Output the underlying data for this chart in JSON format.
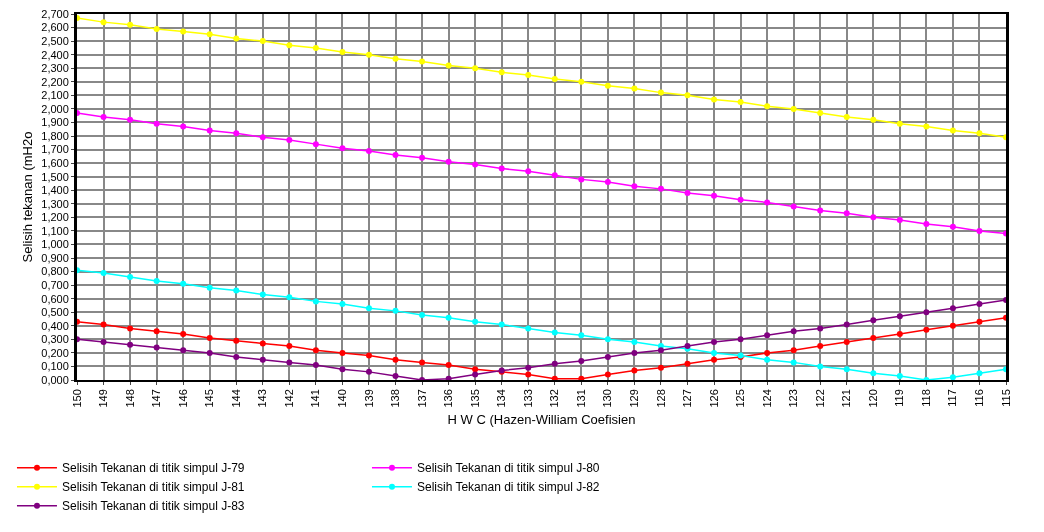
{
  "chart_data": {
    "type": "line",
    "xlabel": "H W C (Hazen-William Coefisien",
    "ylabel": "Selisih tekanan (mH2o",
    "categories": [
      "150",
      "149",
      "148",
      "147",
      "146",
      "145",
      "144",
      "143",
      "142",
      "141",
      "140",
      "139",
      "138",
      "137",
      "136",
      "135",
      "134",
      "133",
      "132",
      "131",
      "130",
      "129",
      "128",
      "127",
      "126",
      "125",
      "124",
      "123",
      "122",
      "121",
      "120",
      "119",
      "118",
      "117",
      "116",
      "115"
    ],
    "series": [
      {
        "name": "Selisih Tekanan di titik simpul J-79",
        "color": "#ff0000",
        "values": [
          0.43,
          0.41,
          0.38,
          0.36,
          0.34,
          0.31,
          0.29,
          0.27,
          0.25,
          0.22,
          0.2,
          0.18,
          0.15,
          0.13,
          0.11,
          0.08,
          0.06,
          0.04,
          0.01,
          0.01,
          0.04,
          0.07,
          0.09,
          0.12,
          0.15,
          0.17,
          0.2,
          0.22,
          0.25,
          0.28,
          0.31,
          0.34,
          0.37,
          0.4,
          0.43,
          0.46
        ]
      },
      {
        "name": "Selisih Tekanan di titik simpul J-80",
        "color": "#ff00ff",
        "values": [
          1.97,
          1.94,
          1.92,
          1.89,
          1.87,
          1.84,
          1.82,
          1.79,
          1.77,
          1.74,
          1.71,
          1.69,
          1.66,
          1.64,
          1.61,
          1.59,
          1.56,
          1.54,
          1.51,
          1.48,
          1.46,
          1.43,
          1.41,
          1.38,
          1.36,
          1.33,
          1.31,
          1.28,
          1.25,
          1.23,
          1.2,
          1.18,
          1.15,
          1.13,
          1.1,
          1.08
        ]
      },
      {
        "name": "Selisih Tekanan di titik simpul J-81",
        "color": "#ffff00",
        "values": [
          2.67,
          2.64,
          2.62,
          2.59,
          2.57,
          2.55,
          2.52,
          2.5,
          2.47,
          2.45,
          2.42,
          2.4,
          2.37,
          2.35,
          2.32,
          2.3,
          2.27,
          2.25,
          2.22,
          2.2,
          2.17,
          2.15,
          2.12,
          2.1,
          2.07,
          2.05,
          2.02,
          2.0,
          1.97,
          1.94,
          1.92,
          1.89,
          1.87,
          1.84,
          1.82,
          1.79
        ]
      },
      {
        "name": "Selisih Tekanan di titik simpul J-82",
        "color": "#00ffff",
        "values": [
          0.81,
          0.79,
          0.76,
          0.73,
          0.71,
          0.68,
          0.66,
          0.63,
          0.61,
          0.58,
          0.56,
          0.53,
          0.51,
          0.48,
          0.46,
          0.43,
          0.41,
          0.38,
          0.35,
          0.33,
          0.3,
          0.28,
          0.25,
          0.23,
          0.2,
          0.18,
          0.15,
          0.13,
          0.1,
          0.08,
          0.05,
          0.03,
          0.0,
          0.02,
          0.05,
          0.08
        ]
      },
      {
        "name": "Selisih Tekanan di titik simpul J-83",
        "color": "#800080",
        "values": [
          0.3,
          0.28,
          0.26,
          0.24,
          0.22,
          0.2,
          0.17,
          0.15,
          0.13,
          0.11,
          0.08,
          0.06,
          0.03,
          0.0,
          0.01,
          0.04,
          0.07,
          0.09,
          0.12,
          0.14,
          0.17,
          0.2,
          0.22,
          0.25,
          0.28,
          0.3,
          0.33,
          0.36,
          0.38,
          0.41,
          0.44,
          0.47,
          0.5,
          0.53,
          0.56,
          0.59
        ]
      }
    ],
    "ylim": [
      0,
      2.7
    ],
    "yticks": [
      {
        "value": 0,
        "label": "0,000"
      },
      {
        "value": 0.1,
        "label": "0,100"
      },
      {
        "value": 0.2,
        "label": "0,200"
      },
      {
        "value": 0.3,
        "label": "0,300"
      },
      {
        "value": 0.4,
        "label": "0,400"
      },
      {
        "value": 0.5,
        "label": "0,500"
      },
      {
        "value": 0.6,
        "label": "0,600"
      },
      {
        "value": 0.7,
        "label": "0,700"
      },
      {
        "value": 0.8,
        "label": "0,800"
      },
      {
        "value": 0.9,
        "label": "0,900"
      },
      {
        "value": 1.0,
        "label": "1,000"
      },
      {
        "value": 1.1,
        "label": "1,100"
      },
      {
        "value": 1.2,
        "label": "1,200"
      },
      {
        "value": 1.3,
        "label": "1,300"
      },
      {
        "value": 1.4,
        "label": "1,400"
      },
      {
        "value": 1.5,
        "label": "1,500"
      },
      {
        "value": 1.6,
        "label": "1,600"
      },
      {
        "value": 1.7,
        "label": "1,700"
      },
      {
        "value": 1.8,
        "label": "1,800"
      },
      {
        "value": 1.9,
        "label": "1,900"
      },
      {
        "value": 2.0,
        "label": "2,000"
      },
      {
        "value": 2.1,
        "label": "2,100"
      },
      {
        "value": 2.2,
        "label": "2,200"
      },
      {
        "value": 2.3,
        "label": "2,300"
      },
      {
        "value": 2.4,
        "label": "2,400"
      },
      {
        "value": 2.5,
        "label": "2,500"
      },
      {
        "value": 2.6,
        "label": "2,600"
      },
      {
        "value": 2.7,
        "label": "2,700"
      }
    ],
    "grid": true,
    "legend": "bottom",
    "marker": "circle",
    "line_style": "solid"
  }
}
